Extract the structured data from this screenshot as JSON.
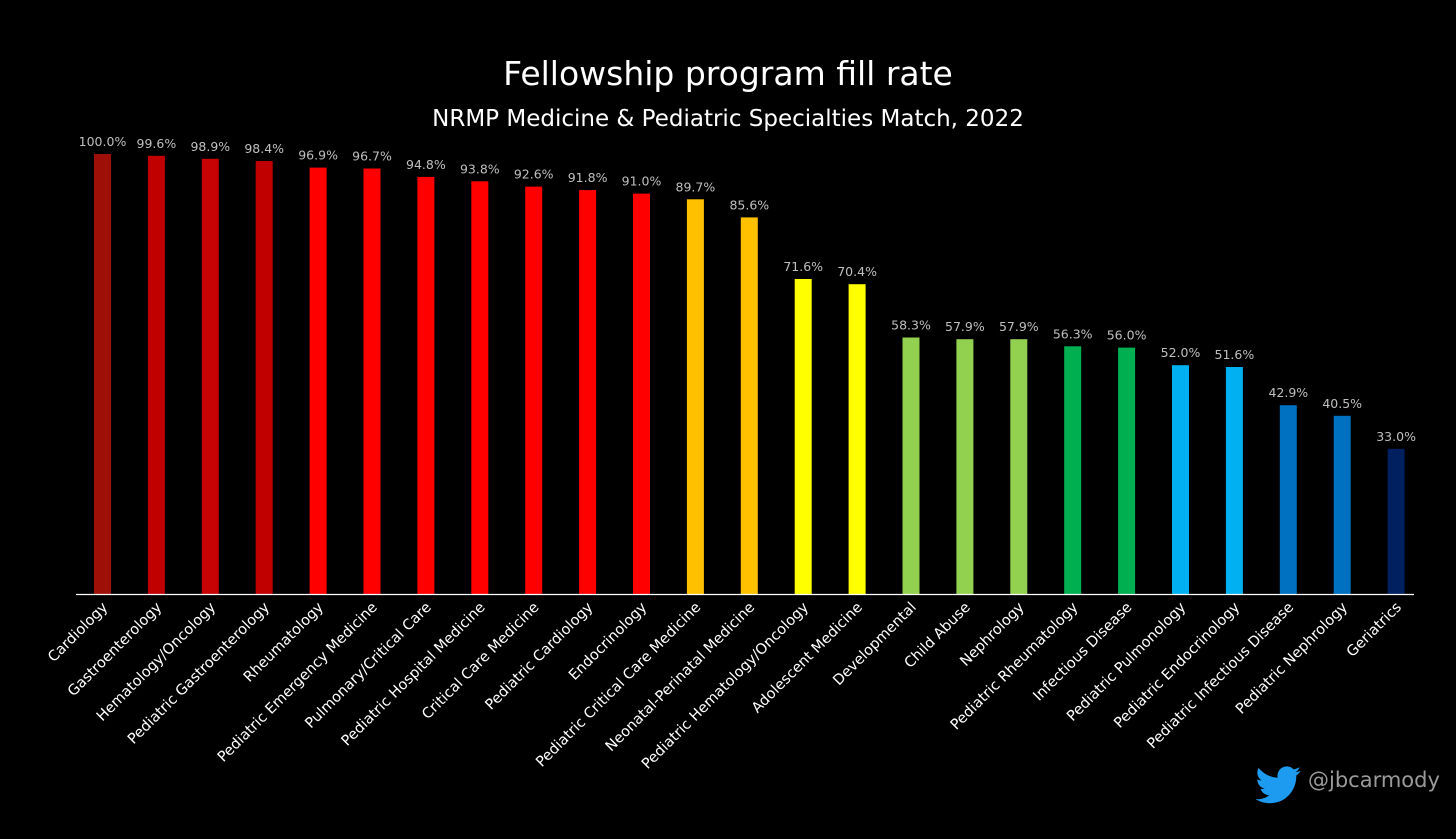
{
  "chart_data": {
    "type": "bar",
    "title": "Fellowship program fill rate",
    "subtitle": "NRMP Medicine & Pediatric Specialties Match, 2022",
    "value_format": "percent_one_decimal",
    "ylim": [
      0,
      100
    ],
    "grid": false,
    "categories": [
      "Cardiology",
      "Gastroenterology",
      "Hematology/Oncology",
      "Pediatric Gastroenterology",
      "Rheumatology",
      "Pediatric Emergency Medicine",
      "Pulmonary/Critical Care",
      "Pediatric Hospital Medicine",
      "Critical Care Medicine",
      "Pediatric Cardiology",
      "Endocrinology",
      "Pediatric Critical Care Medicine",
      "Neonatal-Perinatal Medicine",
      "Pediatric Hematology/Oncology",
      "Adolescent Medicine",
      "Developmental",
      "Child Abuse",
      "Nephrology",
      "Pediatric Rheumatology",
      "Infectious Disease",
      "Pediatric Pulmonology",
      "Pediatric Endocrinology",
      "Pediatric Infectious Disease",
      "Pediatric Nephrology",
      "Geriatrics"
    ],
    "values": [
      100.0,
      99.6,
      98.9,
      98.4,
      96.9,
      96.7,
      94.8,
      93.8,
      92.6,
      91.8,
      91.0,
      89.7,
      85.6,
      71.6,
      70.4,
      58.3,
      57.9,
      57.9,
      56.3,
      56.0,
      52.0,
      51.6,
      42.9,
      40.5,
      33.0
    ],
    "labels": [
      "100.0%",
      "99.6%",
      "98.9%",
      "98.4%",
      "96.9%",
      "96.7%",
      "94.8%",
      "93.8%",
      "92.6%",
      "91.8%",
      "91.0%",
      "89.7%",
      "85.6%",
      "71.6%",
      "70.4%",
      "58.3%",
      "57.9%",
      "57.9%",
      "56.3%",
      "56.0%",
      "52.0%",
      "51.6%",
      "42.9%",
      "40.5%",
      "33.0%"
    ],
    "colors": [
      "#9e0f07",
      "#c00000",
      "#c80303",
      "#c00000",
      "#fe0000",
      "#fe0000",
      "#fe0000",
      "#fe0000",
      "#fe0000",
      "#fe0000",
      "#fe0000",
      "#ffc000",
      "#ffc000",
      "#ffff00",
      "#ffff00",
      "#92d050",
      "#92d050",
      "#92d050",
      "#00b050",
      "#00b050",
      "#00b0f0",
      "#00b0f0",
      "#0070c0",
      "#0070c0",
      "#002060"
    ]
  },
  "colors": {
    "background": "#000000",
    "axis": "#ffffff",
    "value_label": "#bfbfbf",
    "twitter": "#1d9bf0"
  },
  "watermark": {
    "icon": "twitter-bird-icon",
    "handle": "@jbcarmody"
  }
}
